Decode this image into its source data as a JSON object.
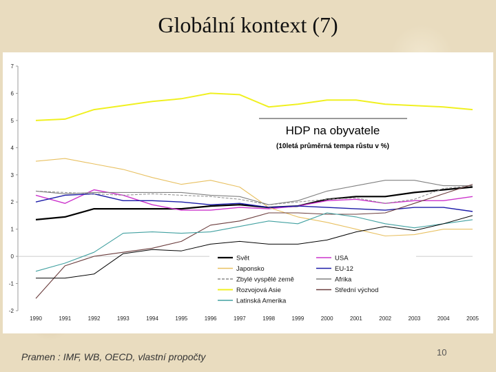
{
  "slide": {
    "title": "Globální kontext (7)",
    "source": "Pramen : IMF, WB, OECD, vlastní propočty",
    "page_number": "10"
  },
  "chart_data": {
    "type": "line",
    "title": "HDP na obyvatele",
    "subtitle": "(10letá průměrná tempa růstu v %)",
    "xlabel": "",
    "ylabel": "",
    "ylim": [
      -2,
      7
    ],
    "yticks": [
      -2,
      -1,
      0,
      1,
      2,
      3,
      4,
      5,
      6,
      7
    ],
    "grid": false,
    "legend_position": "bottom-right",
    "categories": [
      "1990",
      "1991",
      "1992",
      "1993",
      "1994",
      "1995",
      "1996",
      "1997",
      "1998",
      "1999",
      "2000",
      "2001",
      "2002",
      "2003",
      "2004",
      "2005"
    ],
    "series": [
      {
        "name": "Svět",
        "color": "#000000",
        "width": 2.2,
        "values": [
          1.35,
          1.45,
          1.75,
          1.75,
          1.75,
          1.75,
          1.85,
          1.9,
          1.8,
          1.85,
          2.1,
          2.2,
          2.2,
          2.35,
          2.45,
          2.55
        ]
      },
      {
        "name": "USA",
        "color": "#cc33cc",
        "width": 1.4,
        "values": [
          2.25,
          1.95,
          2.45,
          2.25,
          1.9,
          1.7,
          1.7,
          1.8,
          1.75,
          1.85,
          2.05,
          2.1,
          1.95,
          2.05,
          2.05,
          2.2
        ]
      },
      {
        "name": "Japonsko",
        "color": "#e8c060",
        "width": 1.1,
        "values": [
          3.5,
          3.6,
          3.4,
          3.2,
          2.9,
          2.65,
          2.8,
          2.55,
          1.8,
          1.45,
          1.25,
          1.0,
          0.75,
          0.8,
          1.0,
          1.0
        ]
      },
      {
        "name": "EU-12",
        "color": "#1a1aa8",
        "width": 1.4,
        "values": [
          2.0,
          2.25,
          2.3,
          2.05,
          2.05,
          2.0,
          1.9,
          1.95,
          1.8,
          1.85,
          1.8,
          1.75,
          1.7,
          1.8,
          1.8,
          1.65
        ]
      },
      {
        "name": "Zbylé vyspělé země",
        "color": "#8a8a8a",
        "width": 1.0,
        "dashed": true,
        "values": [
          2.4,
          2.35,
          2.3,
          2.25,
          2.3,
          2.25,
          2.2,
          2.1,
          1.9,
          2.0,
          2.1,
          2.15,
          1.95,
          2.1,
          2.5,
          2.6
        ]
      },
      {
        "name": "Afrika",
        "color": "#808080",
        "width": 1.1,
        "values": [
          2.4,
          2.3,
          2.35,
          2.35,
          2.35,
          2.35,
          2.25,
          2.2,
          1.9,
          2.05,
          2.4,
          2.6,
          2.8,
          2.8,
          2.6,
          2.6
        ]
      },
      {
        "name": "Rozvojová Asie",
        "color": "#f0f020",
        "width": 2.0,
        "values": [
          5.0,
          5.05,
          5.4,
          5.55,
          5.7,
          5.8,
          6.0,
          5.95,
          5.5,
          5.6,
          5.75,
          5.75,
          5.6,
          5.55,
          5.5,
          5.4
        ]
      },
      {
        "name": "Střední východ",
        "color": "#6a3c3c",
        "width": 1.1,
        "values": [
          -1.55,
          -0.35,
          0.0,
          0.15,
          0.3,
          0.55,
          1.15,
          1.3,
          1.6,
          1.6,
          1.55,
          1.55,
          1.6,
          1.95,
          2.3,
          2.65
        ]
      },
      {
        "name": "Latinská Amerika",
        "color": "#40a0a0",
        "width": 1.1,
        "values": [
          -0.55,
          -0.25,
          0.15,
          0.85,
          0.9,
          0.85,
          0.9,
          1.1,
          1.3,
          1.2,
          1.6,
          1.45,
          1.2,
          1.05,
          1.2,
          1.35
        ]
      },
      {
        "name": "",
        "color": "#000000",
        "width": 1.0,
        "values": [
          -0.8,
          -0.8,
          -0.65,
          0.1,
          0.25,
          0.2,
          0.45,
          0.55,
          0.45,
          0.45,
          0.6,
          0.9,
          1.1,
          0.95,
          1.2,
          1.5
        ]
      }
    ]
  }
}
